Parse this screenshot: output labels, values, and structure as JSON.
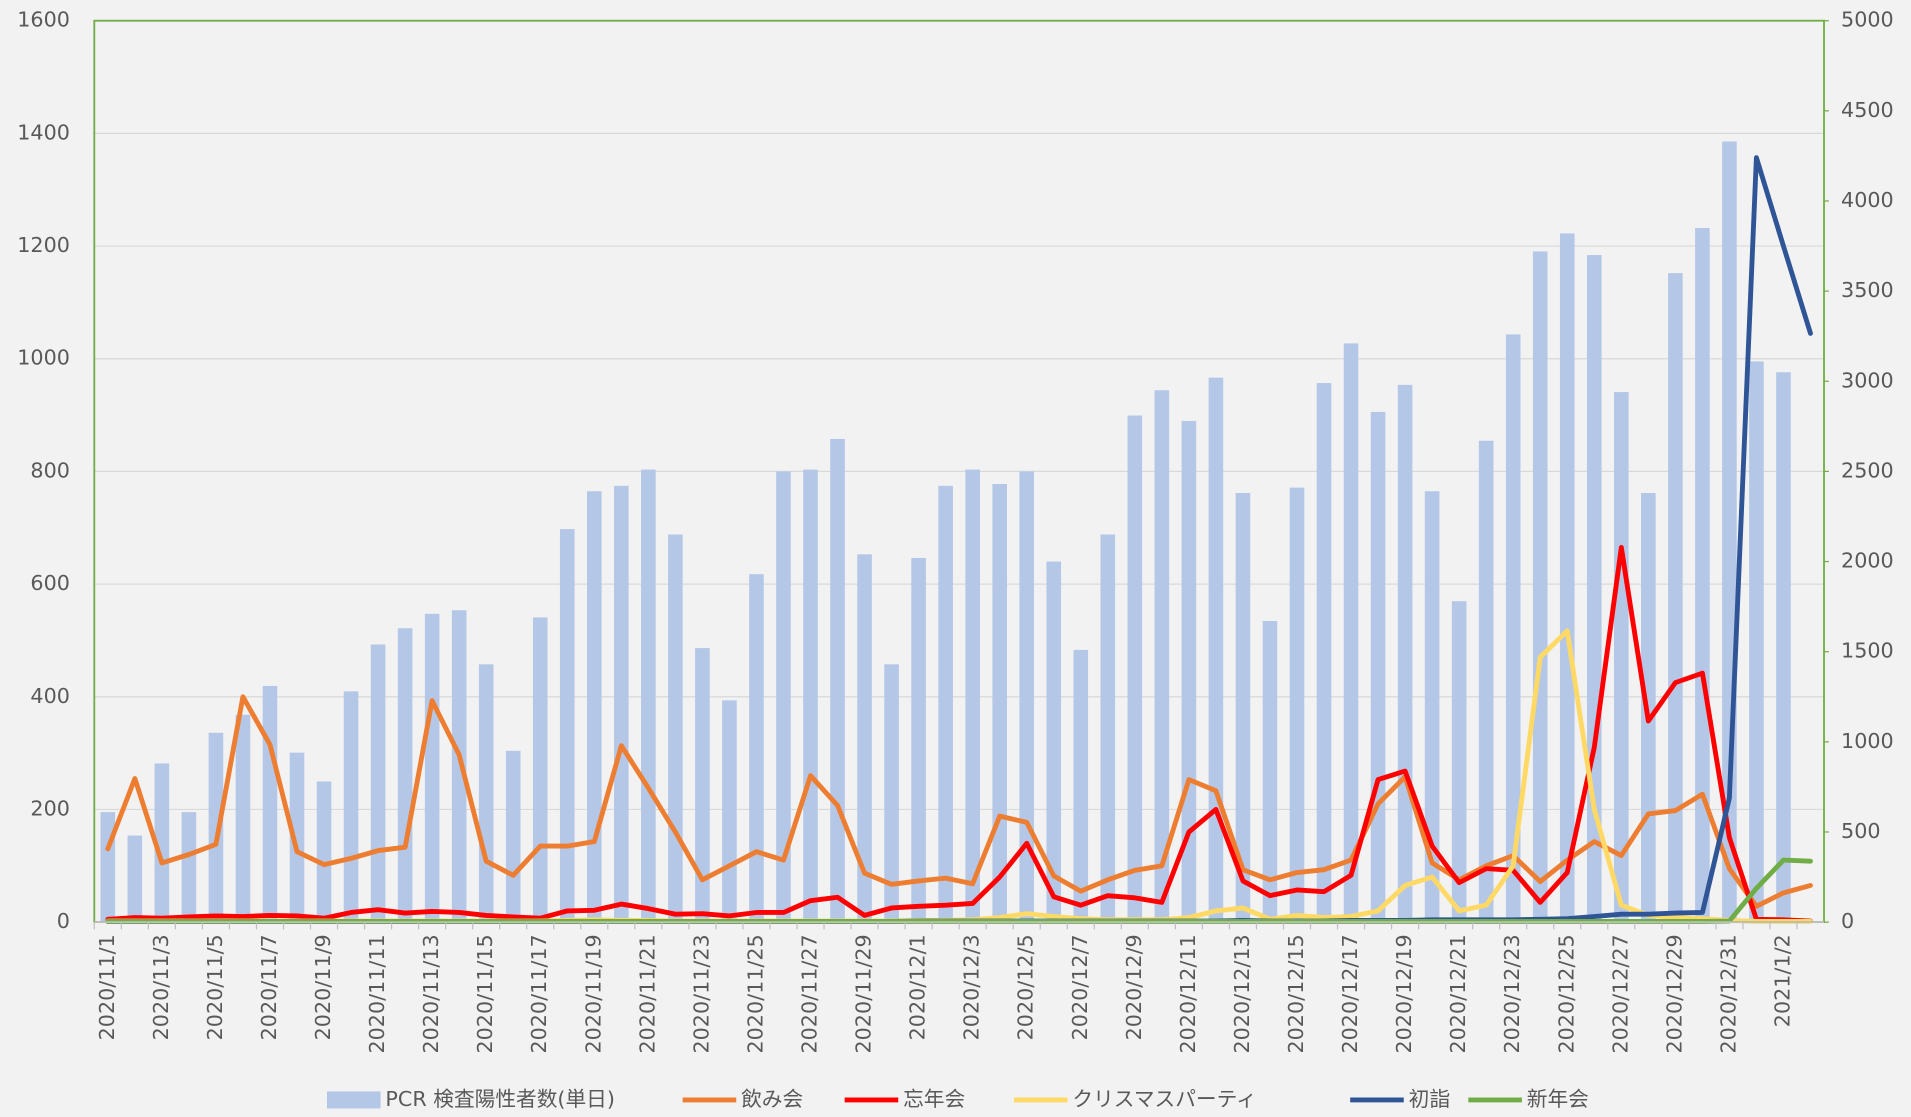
{
  "chart_data": {
    "type": "combo",
    "categories": [
      "2020/11/1",
      null,
      "2020/11/3",
      null,
      "2020/11/5",
      null,
      "2020/11/7",
      null,
      "2020/11/9",
      null,
      "2020/11/11",
      null,
      "2020/11/13",
      null,
      "2020/11/15",
      null,
      "2020/11/17",
      null,
      "2020/11/19",
      null,
      "2020/11/21",
      null,
      "2020/11/23",
      null,
      "2020/11/25",
      null,
      "2020/11/27",
      null,
      "2020/11/29",
      null,
      "2020/12/1",
      null,
      "2020/12/3",
      null,
      "2020/12/5",
      null,
      "2020/12/7",
      null,
      "2020/12/9",
      null,
      "2020/12/11",
      null,
      "2020/12/13",
      null,
      "2020/12/15",
      null,
      "2020/12/17",
      null,
      "2020/12/19",
      null,
      "2020/12/21",
      null,
      "2020/12/23",
      null,
      "2020/12/25",
      null,
      "2020/12/27",
      null,
      "2020/12/29",
      null,
      "2020/12/31",
      null,
      "2021/1/2",
      null
    ],
    "ylim": [
      0,
      1600
    ],
    "yticks": [
      0,
      200,
      400,
      600,
      800,
      1000,
      1200,
      1400,
      1600
    ],
    "y2lim": [
      0,
      5000
    ],
    "y2ticks": [
      0,
      500,
      1000,
      1500,
      2000,
      2500,
      3000,
      3500,
      4000,
      4500,
      5000
    ],
    "grid": true,
    "series": [
      {
        "name": "PCR 検査陽性者数(単日)",
        "type": "bar",
        "axis": "y2",
        "color": "#b4c7e7",
        "values": [
          610,
          480,
          880,
          610,
          1050,
          1150,
          1310,
          940,
          780,
          1280,
          1540,
          1630,
          1710,
          1730,
          1430,
          950,
          1690,
          2180,
          2390,
          2420,
          2510,
          2150,
          1520,
          1230,
          1930,
          2500,
          2510,
          2680,
          2040,
          1430,
          2020,
          2420,
          2510,
          2430,
          2500,
          2000,
          1510,
          2150,
          2810,
          2950,
          2780,
          3020,
          2380,
          1670,
          2410,
          2990,
          3210,
          2830,
          2980,
          2390,
          1780,
          2670,
          3260,
          3720,
          3820,
          3700,
          2940,
          2380,
          3600,
          3850,
          4330,
          3110,
          3050,
          null
        ]
      },
      {
        "name": "飲み会",
        "type": "line",
        "color": "#ed7d31",
        "values": [
          130,
          255,
          105,
          120,
          138,
          400,
          315,
          125,
          102,
          113,
          127,
          133,
          393,
          297,
          108,
          83,
          135,
          135,
          143,
          313,
          238,
          160,
          75,
          100,
          125,
          110,
          260,
          207,
          87,
          67,
          73,
          78,
          68,
          188,
          177,
          82,
          55,
          75,
          92,
          100,
          253,
          233,
          93,
          75,
          88,
          93,
          110,
          210,
          258,
          105,
          75,
          100,
          118,
          72,
          110,
          143,
          118,
          192,
          198,
          227,
          95,
          28,
          52,
          65
        ]
      },
      {
        "name": "忘年会",
        "type": "line",
        "color": "#ff0000",
        "values": [
          5,
          8,
          7,
          9,
          11,
          10,
          12,
          11,
          7,
          17,
          22,
          16,
          19,
          17,
          12,
          9,
          7,
          20,
          21,
          32,
          24,
          14,
          15,
          11,
          17,
          17,
          38,
          44,
          12,
          25,
          28,
          30,
          33,
          80,
          140,
          45,
          30,
          47,
          43,
          35,
          160,
          200,
          73,
          47,
          57,
          54,
          83,
          253,
          268,
          135,
          70,
          95,
          92,
          35,
          88,
          310,
          665,
          357,
          425,
          442,
          150,
          5,
          4,
          2
        ]
      },
      {
        "name": "クリスマスパーティ",
        "type": "line",
        "color": "#ffd966",
        "values": [
          2,
          2,
          2,
          2,
          2,
          2,
          2,
          2,
          2,
          2,
          2,
          2,
          2,
          2,
          2,
          2,
          2,
          3,
          4,
          3,
          3,
          2,
          2,
          2,
          2,
          2,
          2,
          2,
          2,
          2,
          3,
          3,
          4,
          8,
          15,
          10,
          6,
          4,
          4,
          4,
          8,
          20,
          25,
          5,
          12,
          8,
          10,
          20,
          65,
          80,
          20,
          30,
          100,
          470,
          517,
          200,
          30,
          12,
          8,
          6,
          3,
          1,
          1,
          1
        ]
      },
      {
        "name": "初詣",
        "type": "line",
        "color": "#2f5597",
        "values": [
          1,
          1,
          1,
          1,
          1,
          1,
          1,
          1,
          1,
          1,
          1,
          1,
          1,
          1,
          1,
          1,
          1,
          1,
          1,
          1,
          1,
          1,
          1,
          1,
          1,
          1,
          1,
          1,
          1,
          1,
          2,
          2,
          2,
          2,
          2,
          2,
          2,
          2,
          2,
          2,
          2,
          2,
          3,
          2,
          2,
          2,
          3,
          3,
          3,
          4,
          4,
          4,
          4,
          5,
          6,
          10,
          14,
          14,
          16,
          17,
          220,
          1357,
          1200,
          1045
        ]
      },
      {
        "name": "新年会",
        "type": "line",
        "color": "#70ad47",
        "values": [
          1,
          1,
          1,
          1,
          1,
          1,
          1,
          1,
          1,
          1,
          1,
          1,
          1,
          1,
          1,
          1,
          1,
          1,
          1,
          1,
          1,
          1,
          1,
          1,
          1,
          1,
          1,
          1,
          1,
          1,
          1,
          1,
          1,
          1,
          1,
          1,
          1,
          1,
          1,
          1,
          1,
          1,
          1,
          1,
          1,
          1,
          1,
          1,
          1,
          1,
          1,
          1,
          1,
          1,
          1,
          1,
          1,
          1,
          1,
          1,
          2,
          60,
          110,
          108
        ]
      }
    ]
  }
}
